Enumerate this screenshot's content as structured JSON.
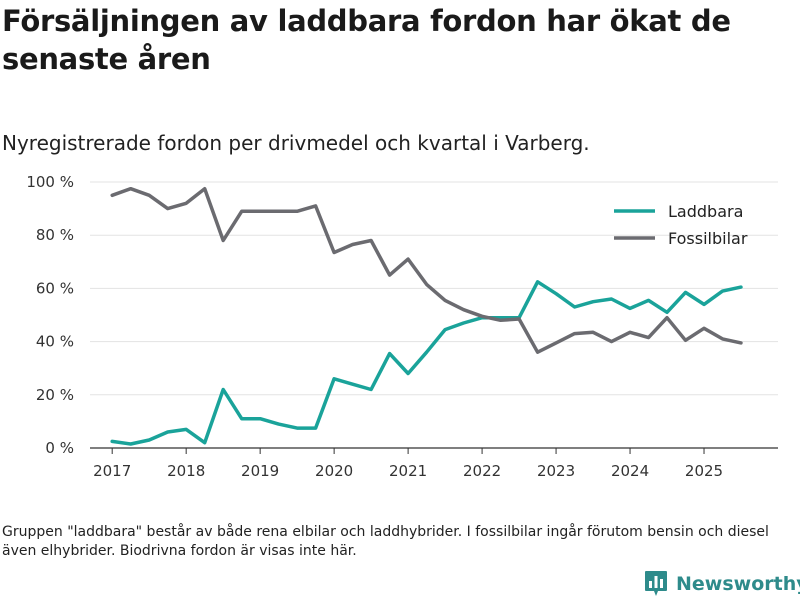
{
  "chart_data": {
    "type": "line",
    "title": "Försäljningen av laddbara fordon har ökat de senaste åren",
    "subtitle": "Nyregistrerade fordon per drivmedel och kvartal i Varberg.",
    "xlabel": "",
    "ylabel": "",
    "xlim": [
      2016.7,
      2026.0
    ],
    "ylim": [
      0,
      100
    ],
    "grid": true,
    "legend_position": "top-right",
    "x_ticks": [
      2017,
      2018,
      2019,
      2020,
      2021,
      2022,
      2023,
      2024,
      2025
    ],
    "x_tick_labels": [
      "2017",
      "2018",
      "2019",
      "2020",
      "2021",
      "2022",
      "2023",
      "2024",
      "2025"
    ],
    "y_ticks": [
      0,
      20,
      40,
      60,
      80,
      100
    ],
    "y_tick_labels": [
      "0 %",
      "20 %",
      "40 %",
      "60 %",
      "80 %",
      "100 %"
    ],
    "x": [
      2017.0,
      2017.25,
      2017.5,
      2017.75,
      2018.0,
      2018.25,
      2018.5,
      2018.75,
      2019.0,
      2019.25,
      2019.5,
      2019.75,
      2020.0,
      2020.25,
      2020.5,
      2020.75,
      2021.0,
      2021.25,
      2021.5,
      2021.75,
      2022.0,
      2022.25,
      2022.5,
      2022.75,
      2023.0,
      2023.25,
      2023.5,
      2023.75,
      2024.0,
      2024.25,
      2024.5,
      2024.75,
      2025.0,
      2025.25,
      2025.5
    ],
    "series": [
      {
        "name": "Laddbara",
        "color": "#1aa39a",
        "values": [
          2.5,
          1.5,
          3,
          6,
          7,
          2,
          22,
          11,
          11,
          9,
          7.5,
          7.5,
          26,
          24,
          22,
          35.5,
          28,
          36,
          44.5,
          47,
          49,
          49,
          49,
          62.5,
          58,
          53,
          55,
          56,
          52.5,
          55.5,
          51,
          58.5,
          54,
          59,
          60.5
        ]
      },
      {
        "name": "Fossilbilar",
        "color": "#6b6b70",
        "values": [
          95,
          97.5,
          95,
          90,
          92,
          97.5,
          78,
          89,
          89,
          89,
          89,
          91,
          73.5,
          76.5,
          78,
          65,
          71,
          61.5,
          55.5,
          52,
          49.5,
          48,
          48.5,
          36,
          39.5,
          43,
          43.5,
          40,
          43.5,
          41.5,
          49,
          40.5,
          45,
          41,
          39.5
        ]
      }
    ]
  },
  "footnote": "Gruppen \"laddbara\" består av både rena elbilar och laddhybrider. I fossilbilar ingår förutom bensin och diesel även elhybrider. Biodrivna fordon är visas inte här.",
  "brand": {
    "name": "Newsworthy",
    "color": "#2e8b8b"
  }
}
